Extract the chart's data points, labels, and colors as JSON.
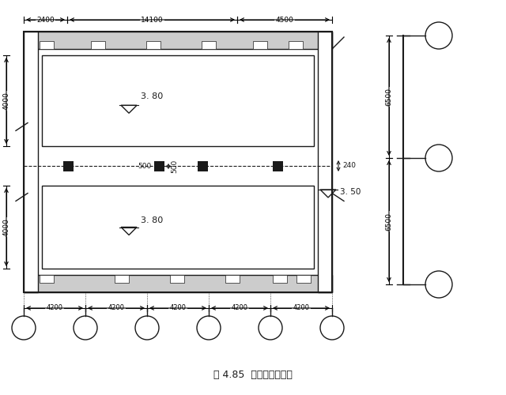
{
  "title": "图 4.85  天棚平面示意图",
  "bg_color": "#ffffff",
  "dim_top_2400": "2400",
  "dim_top_14100": "14100",
  "dim_top_4500": "4500",
  "dim_left1_4000": "4000",
  "dim_left2_4000": "4000",
  "dim_bottom_4200": "4200",
  "dim_right_6500_top": "6500",
  "dim_right_6500_bot": "6500",
  "dim_mid_240": "240",
  "label_380_top": "3. 80",
  "label_380_bot": "3. 80",
  "label_350": "3. 50",
  "label_500h": "500",
  "label_500w": "500"
}
